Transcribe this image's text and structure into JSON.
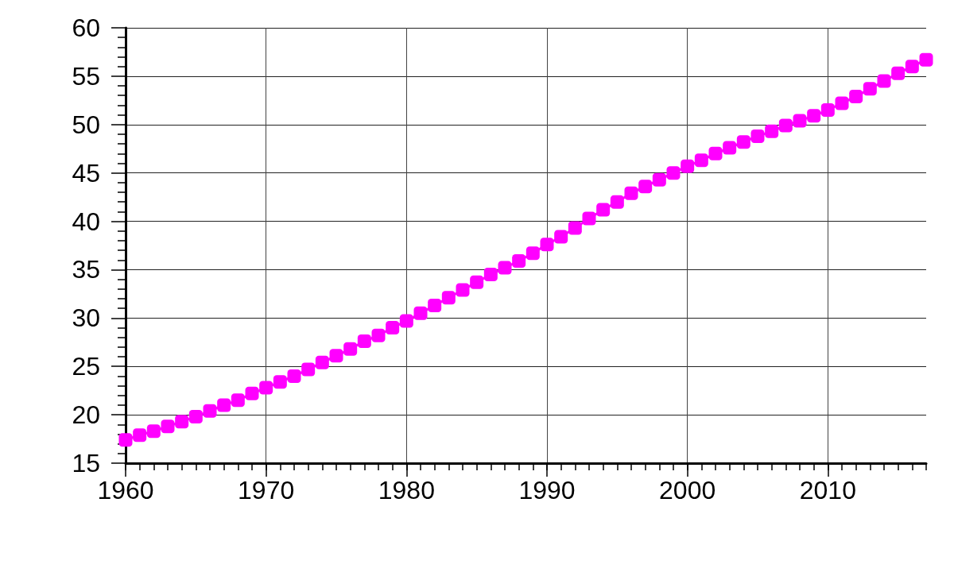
{
  "chart_data": {
    "type": "line",
    "x": [
      1960,
      1961,
      1962,
      1963,
      1964,
      1965,
      1966,
      1967,
      1968,
      1969,
      1970,
      1971,
      1972,
      1973,
      1974,
      1975,
      1976,
      1977,
      1978,
      1979,
      1980,
      1981,
      1982,
      1983,
      1984,
      1985,
      1986,
      1987,
      1988,
      1989,
      1990,
      1991,
      1992,
      1993,
      1994,
      1995,
      1996,
      1997,
      1998,
      1999,
      2000,
      2001,
      2002,
      2003,
      2004,
      2005,
      2006,
      2007,
      2008,
      2009,
      2010,
      2011,
      2012,
      2013,
      2014,
      2015,
      2016,
      2017
    ],
    "values": [
      17.4,
      17.9,
      18.3,
      18.8,
      19.3,
      19.8,
      20.4,
      21.0,
      21.5,
      22.2,
      22.8,
      23.4,
      24.0,
      24.7,
      25.4,
      26.1,
      26.8,
      27.6,
      28.2,
      29.0,
      29.7,
      30.5,
      31.3,
      32.1,
      32.9,
      33.7,
      34.5,
      35.2,
      35.9,
      36.7,
      37.6,
      38.4,
      39.3,
      40.3,
      41.2,
      42.0,
      42.9,
      43.6,
      44.3,
      45.0,
      45.7,
      46.3,
      47.0,
      47.6,
      48.2,
      48.8,
      49.3,
      49.9,
      50.4,
      50.9,
      51.5,
      52.2,
      52.9,
      53.7,
      54.5,
      55.3,
      56.0,
      56.7
    ],
    "color": "#ff00ff",
    "xlim": [
      1960,
      2017
    ],
    "ylim": [
      15,
      60
    ],
    "xticks": [
      1960,
      1970,
      1980,
      1990,
      2000,
      2010
    ],
    "yticks": [
      15,
      20,
      25,
      30,
      35,
      40,
      45,
      50,
      55,
      60
    ],
    "grid": true,
    "marker": "square",
    "line_style": "solid"
  }
}
